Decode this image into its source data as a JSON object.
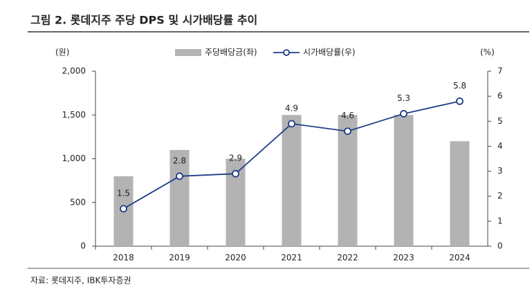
{
  "chart_data": {
    "type": "bar",
    "title": "그림 2. 롯데지주 주당 DPS 및 시가배당률 추이",
    "y_label": "(원)",
    "y2_label": "(%)",
    "source": "자료: 롯데지주, IBK투자증권",
    "categories": [
      "2018",
      "2019",
      "2020",
      "2021",
      "2022",
      "2023",
      "2024"
    ],
    "series": [
      {
        "name": "주당배당금(좌)",
        "type": "bar",
        "color": "#b3b3b3",
        "values": [
          800,
          1100,
          1000,
          1500,
          1500,
          1500,
          1200
        ]
      },
      {
        "name": "시가배당률(우)",
        "type": "line",
        "axis": "y2",
        "color": "#1f3c88",
        "values": [
          1.5,
          2.8,
          2.9,
          4.9,
          4.6,
          5.3,
          5.8
        ]
      }
    ],
    "ylim": [
      0,
      2000
    ],
    "yticks": [
      0,
      500,
      {
        "value": 1000,
        "label": "1,000"
      },
      {
        "value": 1500,
        "label": "1,500"
      },
      {
        "value": 2000,
        "label": "2,000"
      }
    ],
    "y2lim": [
      0,
      7
    ],
    "y2ticks": [
      0,
      1,
      2,
      3,
      4,
      5,
      6,
      7
    ]
  }
}
